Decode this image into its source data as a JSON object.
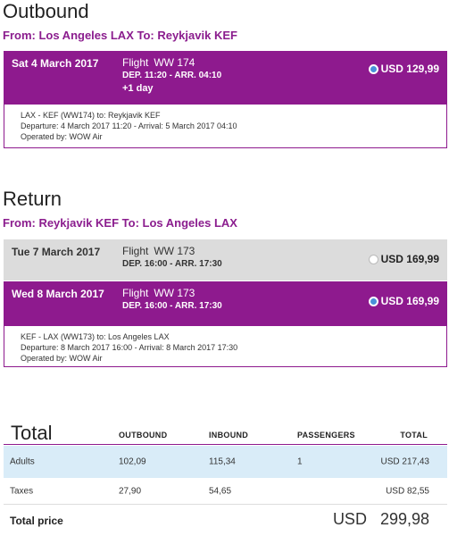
{
  "outbound": {
    "title": "Outbound",
    "route": "From: Los Angeles LAX To: Reykjavik KEF",
    "flights": [
      {
        "date": "Sat 4 March 2017",
        "flight_label": "Flight",
        "flight_number": "WW 174",
        "times": "DEP. 11:20 - ARR. 04:10",
        "extra": "+1 day",
        "price": "USD 129,99",
        "selected": true
      }
    ],
    "detail": {
      "line1": "LAX - KEF (WW174) to: Reykjavik KEF",
      "line2": "Departure: 4 March 2017 11:20 - Arrival: 5 March 2017 04:10",
      "line3": "Operated by: WOW Air"
    }
  },
  "return": {
    "title": "Return",
    "route": "From: Reykjavik KEF To: Los Angeles LAX",
    "flights": [
      {
        "date": "Tue 7 March 2017",
        "flight_label": "Flight",
        "flight_number": "WW 173",
        "times": "DEP. 16:00 - ARR. 17:30",
        "price": "USD 169,99",
        "selected": false
      },
      {
        "date": "Wed 8 March 2017",
        "flight_label": "Flight",
        "flight_number": "WW 173",
        "times": "DEP. 16:00 - ARR. 17:30",
        "price": "USD 169,99",
        "selected": true
      }
    ],
    "detail": {
      "line1": "KEF - LAX (WW173) to: Los Angeles LAX",
      "line2": "Departure: 8 March 2017 16:00 - Arrival: 8 March 2017 17:30",
      "line3": "Operated by: WOW Air"
    }
  },
  "summary": {
    "title": "Total",
    "headers": {
      "outbound": "OUTBOUND",
      "inbound": "INBOUND",
      "passengers": "PASSENGERS",
      "total": "TOTAL"
    },
    "adults": {
      "label": "Adults",
      "outbound": "102,09",
      "inbound": "115,34",
      "passengers": "1",
      "total": "USD  217,43"
    },
    "taxes": {
      "label": "Taxes",
      "outbound": "27,90",
      "inbound": "54,65",
      "total": "USD  82,55"
    },
    "total_price_label": "Total price",
    "total_price_value": "USD   299,98"
  },
  "colors": {
    "brand_purple": "#8e1a8e",
    "selected_radio": "#4a90d9",
    "unselected_row": "#dcdcdc",
    "adults_row_bg": "#d9ecf8"
  }
}
